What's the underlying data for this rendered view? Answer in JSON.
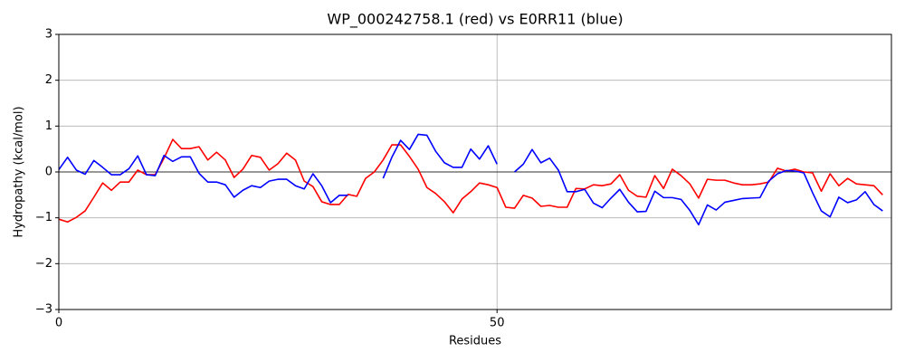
{
  "chart_data": {
    "type": "line",
    "title": "WP_000242758.1 (red) vs E0RR11 (blue)",
    "xlabel": "Residues",
    "ylabel": "Hydropathy (kcal/mol)",
    "x": [
      0,
      1,
      2,
      3,
      4,
      5,
      6,
      7,
      8,
      9,
      10,
      11,
      12,
      13,
      14,
      15,
      16,
      17,
      18,
      19,
      20,
      21,
      22,
      23,
      24,
      25,
      26,
      27,
      28,
      29,
      30,
      31,
      32,
      33,
      34,
      35,
      36,
      37,
      38,
      39,
      40,
      41,
      42,
      43,
      44,
      45,
      46,
      47,
      48,
      49,
      50,
      51,
      52,
      53,
      54,
      55,
      56,
      57,
      58,
      59,
      60,
      61,
      62,
      63,
      64,
      65,
      66,
      67,
      68,
      69,
      70,
      71,
      72,
      73,
      74,
      75,
      76,
      77,
      78,
      79,
      80,
      81,
      82,
      83,
      84,
      85,
      86,
      87,
      88,
      89,
      90,
      91,
      92,
      93,
      94
    ],
    "series": [
      {
        "name": "WP_000242758.1",
        "color": "#ff0000",
        "values": [
          -1.03,
          -1.09,
          -0.99,
          -0.85,
          -0.55,
          -0.24,
          -0.4,
          -0.22,
          -0.22,
          0.04,
          -0.06,
          -0.06,
          0.3,
          0.71,
          0.51,
          0.51,
          0.55,
          0.26,
          0.43,
          0.26,
          -0.12,
          0.06,
          0.36,
          0.32,
          0.04,
          0.18,
          0.41,
          0.26,
          -0.2,
          -0.32,
          -0.65,
          -0.71,
          -0.71,
          -0.49,
          -0.53,
          -0.14,
          0.0,
          0.26,
          0.59,
          0.59,
          0.34,
          0.06,
          -0.34,
          -0.47,
          -0.65,
          -0.89,
          -0.59,
          -0.43,
          -0.24,
          -0.28,
          -0.34,
          -0.77,
          -0.79,
          -0.51,
          -0.57,
          -0.75,
          -0.73,
          -0.77,
          -0.77,
          -0.36,
          -0.37,
          -0.28,
          -0.3,
          -0.26,
          -0.06,
          -0.4,
          -0.53,
          -0.55,
          -0.08,
          -0.36,
          0.06,
          -0.08,
          -0.26,
          -0.57,
          -0.16,
          -0.18,
          -0.18,
          -0.24,
          -0.28,
          -0.28,
          -0.26,
          -0.22,
          0.08,
          0.02,
          0.06,
          0.0,
          -0.02,
          -0.42,
          -0.04,
          -0.3,
          -0.14,
          -0.26,
          -0.28,
          -0.3,
          -0.5
        ]
      },
      {
        "name": "E0RR11",
        "color": "#0000ff",
        "values": [
          0.05,
          0.32,
          0.04,
          -0.05,
          0.25,
          0.1,
          -0.06,
          -0.06,
          0.07,
          0.35,
          -0.06,
          -0.08,
          0.36,
          0.23,
          0.33,
          0.33,
          -0.03,
          -0.22,
          -0.22,
          -0.28,
          -0.55,
          -0.4,
          -0.3,
          -0.34,
          -0.2,
          -0.16,
          -0.16,
          -0.3,
          -0.37,
          -0.04,
          -0.3,
          -0.67,
          -0.51,
          -0.51,
          null,
          null,
          null,
          -0.14,
          0.32,
          0.69,
          0.49,
          0.82,
          0.8,
          0.45,
          0.2,
          0.1,
          0.1,
          0.5,
          0.28,
          0.57,
          0.17,
          null,
          0.0,
          0.17,
          0.49,
          0.2,
          0.3,
          0.04,
          -0.43,
          -0.43,
          -0.38,
          -0.68,
          -0.78,
          -0.57,
          -0.38,
          -0.66,
          -0.87,
          -0.86,
          -0.42,
          -0.56,
          -0.56,
          -0.6,
          -0.84,
          -1.15,
          -0.72,
          -0.83,
          -0.66,
          -0.62,
          -0.58,
          -0.57,
          -0.56,
          -0.2,
          -0.04,
          0.03,
          0.02,
          -0.02,
          -0.45,
          -0.85,
          -0.98,
          -0.55,
          -0.67,
          -0.61,
          -0.43,
          -0.71,
          -0.85
        ]
      }
    ],
    "xlim": [
      0,
      95
    ],
    "ylim": [
      -3,
      3
    ],
    "xticks": [
      0,
      50
    ],
    "yticks": [
      {
        "value": -3,
        "label": "−3"
      },
      {
        "value": -2,
        "label": "−2"
      },
      {
        "value": -1,
        "label": "−1"
      },
      0,
      1,
      2,
      3
    ],
    "grid": true,
    "hline": 0
  }
}
